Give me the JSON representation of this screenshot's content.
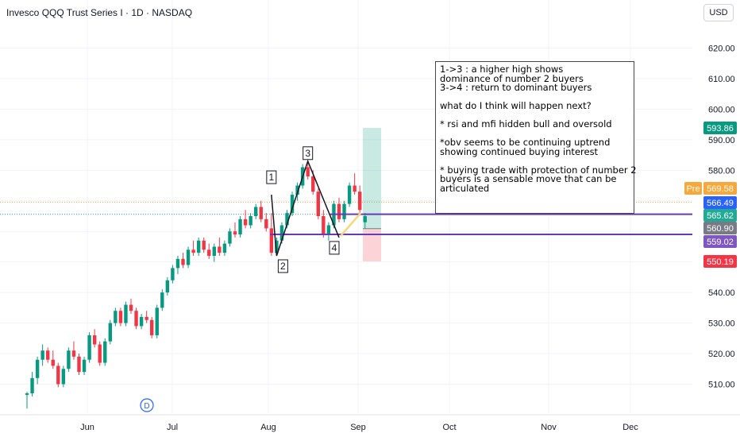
{
  "header": {
    "title": "Invesco QQQ Trust Series I · 1D · NASDAQ",
    "currency": "USD"
  },
  "chart_data": {
    "type": "candlestick",
    "ylim": [
      502,
      628
    ],
    "y_ticks": [
      510,
      520,
      530,
      540,
      550,
      560,
      570,
      580,
      590,
      600,
      610,
      620
    ],
    "x_labels": [
      "Jun",
      "Jul",
      "Aug",
      "Sep",
      "Oct",
      "Nov",
      "Dec"
    ],
    "candles": [
      [
        506.5,
        507.5,
        502,
        507
      ],
      [
        507,
        514,
        506,
        512
      ],
      [
        512,
        519,
        510,
        518
      ],
      [
        518,
        523,
        516,
        521
      ],
      [
        521,
        522,
        517,
        518
      ],
      [
        518,
        521,
        515,
        516
      ],
      [
        516,
        517,
        509,
        510
      ],
      [
        510,
        516,
        509,
        515
      ],
      [
        515,
        522,
        514,
        521
      ],
      [
        521,
        524,
        518,
        519
      ],
      [
        519,
        520,
        513,
        514
      ],
      [
        514,
        519,
        513,
        518
      ],
      [
        518,
        527,
        517,
        526
      ],
      [
        526,
        528,
        522,
        523
      ],
      [
        523,
        524,
        516,
        517
      ],
      [
        517,
        525,
        516,
        524
      ],
      [
        524,
        531,
        523,
        530
      ],
      [
        530,
        535,
        529,
        534
      ],
      [
        534,
        535,
        529,
        530
      ],
      [
        530,
        537,
        529,
        536
      ],
      [
        536,
        538,
        533,
        534
      ],
      [
        534,
        535,
        528,
        529
      ],
      [
        529,
        533,
        528,
        532
      ],
      [
        532,
        534,
        530,
        531
      ],
      [
        531,
        532,
        525,
        526
      ],
      [
        526,
        536,
        525,
        535
      ],
      [
        535,
        541,
        534,
        540
      ],
      [
        540,
        545,
        539,
        544
      ],
      [
        544,
        549,
        543,
        548
      ],
      [
        548,
        552,
        546,
        551
      ],
      [
        551,
        553,
        548,
        549
      ],
      [
        549,
        555,
        548,
        554
      ],
      [
        554,
        557,
        552,
        553
      ],
      [
        553,
        558,
        552,
        557
      ],
      [
        557,
        558,
        553,
        554
      ],
      [
        554,
        556,
        551,
        552
      ],
      [
        552,
        556,
        550,
        555
      ],
      [
        555,
        558,
        552,
        553
      ],
      [
        553,
        557,
        552,
        556
      ],
      [
        556,
        561,
        555,
        560
      ],
      [
        560,
        563,
        558,
        559
      ],
      [
        559,
        565,
        558,
        564
      ],
      [
        564,
        567,
        561,
        562
      ],
      [
        562,
        566,
        561,
        565
      ],
      [
        565,
        569,
        564,
        568
      ],
      [
        568,
        570,
        563,
        564
      ],
      [
        564,
        566,
        560,
        561
      ],
      [
        561,
        566,
        552,
        553
      ],
      [
        553,
        558,
        552,
        557
      ],
      [
        557,
        563,
        556,
        562
      ],
      [
        562,
        567,
        561,
        566
      ],
      [
        566,
        573,
        565,
        572
      ],
      [
        572,
        576,
        570,
        575
      ],
      [
        575,
        582,
        574,
        581
      ],
      [
        581,
        583,
        577,
        578
      ],
      [
        578,
        580,
        572,
        573
      ],
      [
        573,
        574,
        564,
        565
      ],
      [
        565,
        567,
        558,
        559
      ],
      [
        559,
        563,
        557,
        562
      ],
      [
        562,
        570,
        561,
        569
      ],
      [
        569,
        571,
        563,
        564
      ],
      [
        564,
        570,
        563,
        569
      ],
      [
        569,
        576,
        568,
        575
      ],
      [
        575,
        579,
        572,
        573
      ],
      [
        573,
        575,
        566,
        567
      ],
      [
        563,
        566,
        561,
        565
      ]
    ],
    "points": [
      {
        "label": "1",
        "x_index": 47,
        "price": 572
      },
      {
        "label": "2",
        "x_index": 48,
        "price": 552
      },
      {
        "label": "3",
        "x_index": 54,
        "price": 583
      },
      {
        "label": "4",
        "x_index": 60,
        "price": 558
      }
    ],
    "levels": [
      {
        "name": "upper",
        "price": 565.62
      },
      {
        "name": "lower",
        "price": 559.02
      }
    ],
    "position": {
      "entry": 560.9,
      "target": 593.86,
      "stop": 550.19
    },
    "event_marker": "D"
  },
  "price_tags": {
    "p593": {
      "value": "593.86",
      "color": "#089981"
    },
    "pre_label": "Pre",
    "p569": {
      "value": "569.58",
      "color": "#f7a83a"
    },
    "p566": {
      "value": "566.49",
      "color": "#2962ff"
    },
    "p565": {
      "value": "565.62",
      "color": "#22ab94"
    },
    "p560": {
      "value": "560.90",
      "color": "#787b86"
    },
    "p559": {
      "value": "559.02",
      "color": "#7e57c2"
    },
    "p550": {
      "value": "550.19",
      "color": "#f23645"
    }
  },
  "note": {
    "lines": [
      "1->3 : a higher high shows",
      "dominance of number 2 buyers",
      "3->4 : return to dominant buyers",
      "",
      "what do I think will happen next?",
      "",
      "* rsi and mfi hidden bull and oversold",
      "",
      "*obv seems to be continuing uptrend",
      "showing continued buying interest",
      "",
      "* buying trade with protection of number 2",
      "buyers is a sensable move that can be",
      "articulated"
    ]
  }
}
